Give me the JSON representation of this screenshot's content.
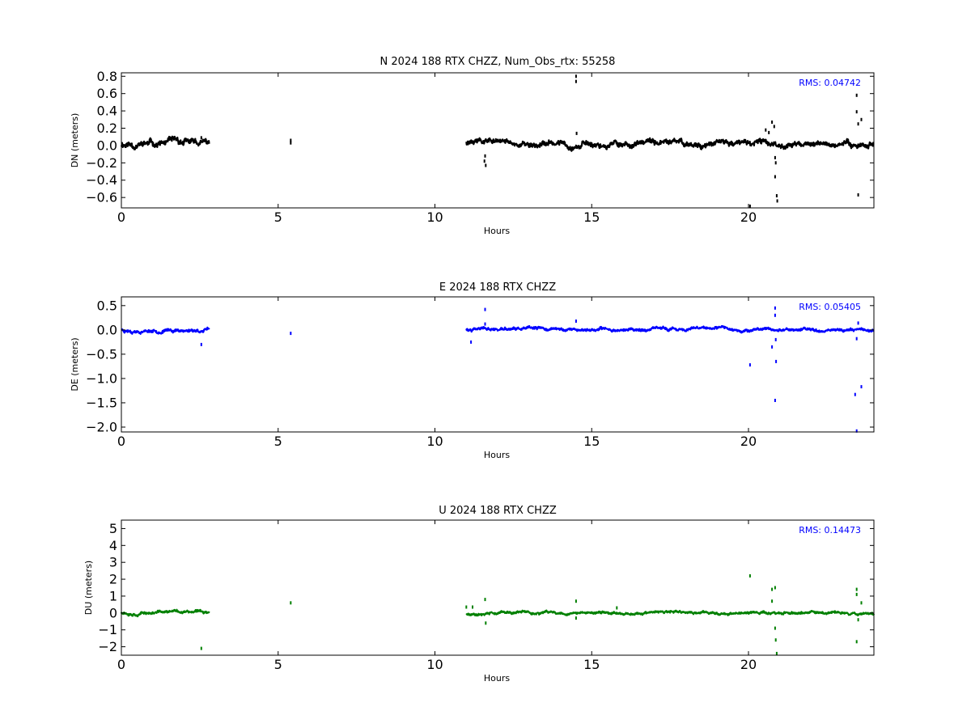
{
  "chart_data": [
    {
      "type": "scatter",
      "title": "N 2024 188 RTX  CHZZ, Num_Obs_rtx: 55258",
      "xlabel": "Hours",
      "ylabel": "DN (meters)",
      "xlim": [
        0,
        24
      ],
      "ylim": [
        -0.72,
        0.84
      ],
      "xticks": [
        0,
        5,
        10,
        15,
        20
      ],
      "yticks": [
        -0.6,
        -0.4,
        -0.2,
        0.0,
        0.2,
        0.4,
        0.6,
        0.8
      ],
      "ytick_labels": [
        "−0.6",
        "−0.4",
        "−0.2",
        "0.0",
        "0.2",
        "0.4",
        "0.6",
        "0.8"
      ],
      "annotation": "RMS:  0.04742",
      "color": "#000000",
      "segments": [
        {
          "x0": 0.0,
          "x1": 2.8,
          "base": 0.02,
          "noise": 0.045
        },
        {
          "x0": 11.0,
          "x1": 24.0,
          "base": 0.02,
          "noise": 0.04
        }
      ],
      "points": [
        {
          "x": 2.55,
          "y": 0.09
        },
        {
          "x": 5.4,
          "y": 0.06
        },
        {
          "x": 5.4,
          "y": 0.03
        },
        {
          "x": 11.6,
          "y": -0.12
        },
        {
          "x": 11.62,
          "y": -0.23
        },
        {
          "x": 11.58,
          "y": -0.18
        },
        {
          "x": 14.5,
          "y": 0.8
        },
        {
          "x": 14.5,
          "y": 0.74
        },
        {
          "x": 14.52,
          "y": 0.14
        },
        {
          "x": 20.05,
          "y": -0.7
        },
        {
          "x": 20.55,
          "y": 0.18
        },
        {
          "x": 20.65,
          "y": 0.15
        },
        {
          "x": 20.75,
          "y": 0.27
        },
        {
          "x": 20.82,
          "y": 0.22
        },
        {
          "x": 20.85,
          "y": -0.14
        },
        {
          "x": 20.85,
          "y": -0.36
        },
        {
          "x": 20.87,
          "y": -0.2
        },
        {
          "x": 20.9,
          "y": -0.58
        },
        {
          "x": 20.92,
          "y": -0.64
        },
        {
          "x": 23.45,
          "y": 0.58
        },
        {
          "x": 23.45,
          "y": 0.39
        },
        {
          "x": 23.5,
          "y": 0.25
        },
        {
          "x": 23.6,
          "y": 0.3
        },
        {
          "x": 23.5,
          "y": -0.57
        }
      ]
    },
    {
      "type": "scatter",
      "title": "E 2024 188 RTX  CHZZ",
      "xlabel": "Hours",
      "ylabel": "DE (meters)",
      "xlim": [
        0,
        24
      ],
      "ylim": [
        -2.1,
        0.68
      ],
      "xticks": [
        0,
        5,
        10,
        15,
        20
      ],
      "yticks": [
        -2.0,
        -1.5,
        -1.0,
        -0.5,
        0.0,
        0.5
      ],
      "ytick_labels": [
        "−2.0",
        "−1.5",
        "−1.0",
        "−0.5",
        "0.0",
        "0.5"
      ],
      "annotation": "RMS:  0.05405",
      "color": "#0000ff",
      "segments": [
        {
          "x0": 0.0,
          "x1": 2.8,
          "base": 0.0,
          "noise": 0.04
        },
        {
          "x0": 11.0,
          "x1": 24.0,
          "base": 0.01,
          "noise": 0.035
        }
      ],
      "points": [
        {
          "x": 2.55,
          "y": -0.3
        },
        {
          "x": 5.4,
          "y": -0.07
        },
        {
          "x": 11.15,
          "y": -0.25
        },
        {
          "x": 11.6,
          "y": 0.42
        },
        {
          "x": 11.6,
          "y": 0.12
        },
        {
          "x": 14.5,
          "y": 0.18
        },
        {
          "x": 20.05,
          "y": -0.72
        },
        {
          "x": 20.75,
          "y": -0.35
        },
        {
          "x": 20.85,
          "y": 0.45
        },
        {
          "x": 20.85,
          "y": 0.3
        },
        {
          "x": 20.87,
          "y": -0.2
        },
        {
          "x": 20.88,
          "y": -0.65
        },
        {
          "x": 20.85,
          "y": -1.45
        },
        {
          "x": 23.4,
          "y": -1.33
        },
        {
          "x": 23.45,
          "y": -0.18
        },
        {
          "x": 23.6,
          "y": -1.17
        },
        {
          "x": 23.5,
          "y": 0.14
        },
        {
          "x": 23.45,
          "y": -2.08
        }
      ]
    },
    {
      "type": "scatter",
      "title": "U 2024 188 RTX  CHZZ",
      "xlabel": "Hours",
      "ylabel": "DU (meters)",
      "xlim": [
        0,
        24
      ],
      "ylim": [
        -2.5,
        5.5
      ],
      "xticks": [
        0,
        5,
        10,
        15,
        20
      ],
      "yticks": [
        -2,
        -1,
        0,
        1,
        2,
        3,
        4,
        5
      ],
      "ytick_labels": [
        "−2",
        "−1",
        "0",
        "1",
        "2",
        "3",
        "4",
        "5"
      ],
      "annotation": "RMS:  0.14473",
      "color": "#008000",
      "segments": [
        {
          "x0": 0.0,
          "x1": 2.8,
          "base": 0.05,
          "noise": 0.1
        },
        {
          "x0": 11.0,
          "x1": 24.0,
          "base": 0.0,
          "noise": 0.09
        }
      ],
      "points": [
        {
          "x": 2.55,
          "y": -2.1
        },
        {
          "x": 5.4,
          "y": 0.6
        },
        {
          "x": 11.0,
          "y": 0.35
        },
        {
          "x": 11.2,
          "y": 0.35
        },
        {
          "x": 11.6,
          "y": 0.8
        },
        {
          "x": 11.62,
          "y": -0.6
        },
        {
          "x": 14.5,
          "y": 0.7
        },
        {
          "x": 14.5,
          "y": -0.3
        },
        {
          "x": 15.8,
          "y": 0.3
        },
        {
          "x": 20.05,
          "y": 2.2
        },
        {
          "x": 20.75,
          "y": 1.4
        },
        {
          "x": 20.75,
          "y": 0.7
        },
        {
          "x": 20.85,
          "y": 1.5
        },
        {
          "x": 20.85,
          "y": -0.9
        },
        {
          "x": 20.87,
          "y": -1.6
        },
        {
          "x": 20.9,
          "y": -2.4
        },
        {
          "x": 23.45,
          "y": 1.4
        },
        {
          "x": 23.45,
          "y": 1.1
        },
        {
          "x": 23.6,
          "y": 0.6
        },
        {
          "x": 23.45,
          "y": -1.7
        },
        {
          "x": 23.5,
          "y": -0.4
        }
      ]
    }
  ]
}
